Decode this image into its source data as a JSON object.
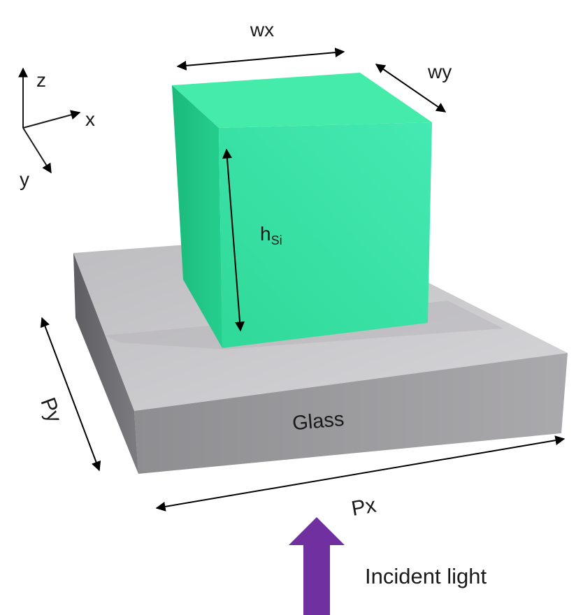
{
  "labels": {
    "axis_z": "z",
    "axis_x": "x",
    "axis_y": "y",
    "width_x": "wx",
    "width_y": "wy",
    "height_main": "h",
    "height_sub": "Si",
    "substrate": "Glass",
    "period_x": "Px",
    "period_y": "Py",
    "incident": "Incident light"
  },
  "colors": {
    "pillar_front": "#35e3a3",
    "pillar_left": "#1ec985",
    "pillar_top": "#44eba9",
    "glass_top": "#c6c5c8",
    "glass_front": "#9b9a9d",
    "glass_side": "#6d6c70",
    "arrow": "#7030a0"
  },
  "icons": {
    "coordinate_axes": "xyz-axes-icon",
    "incident_arrow": "up-arrow-icon"
  }
}
